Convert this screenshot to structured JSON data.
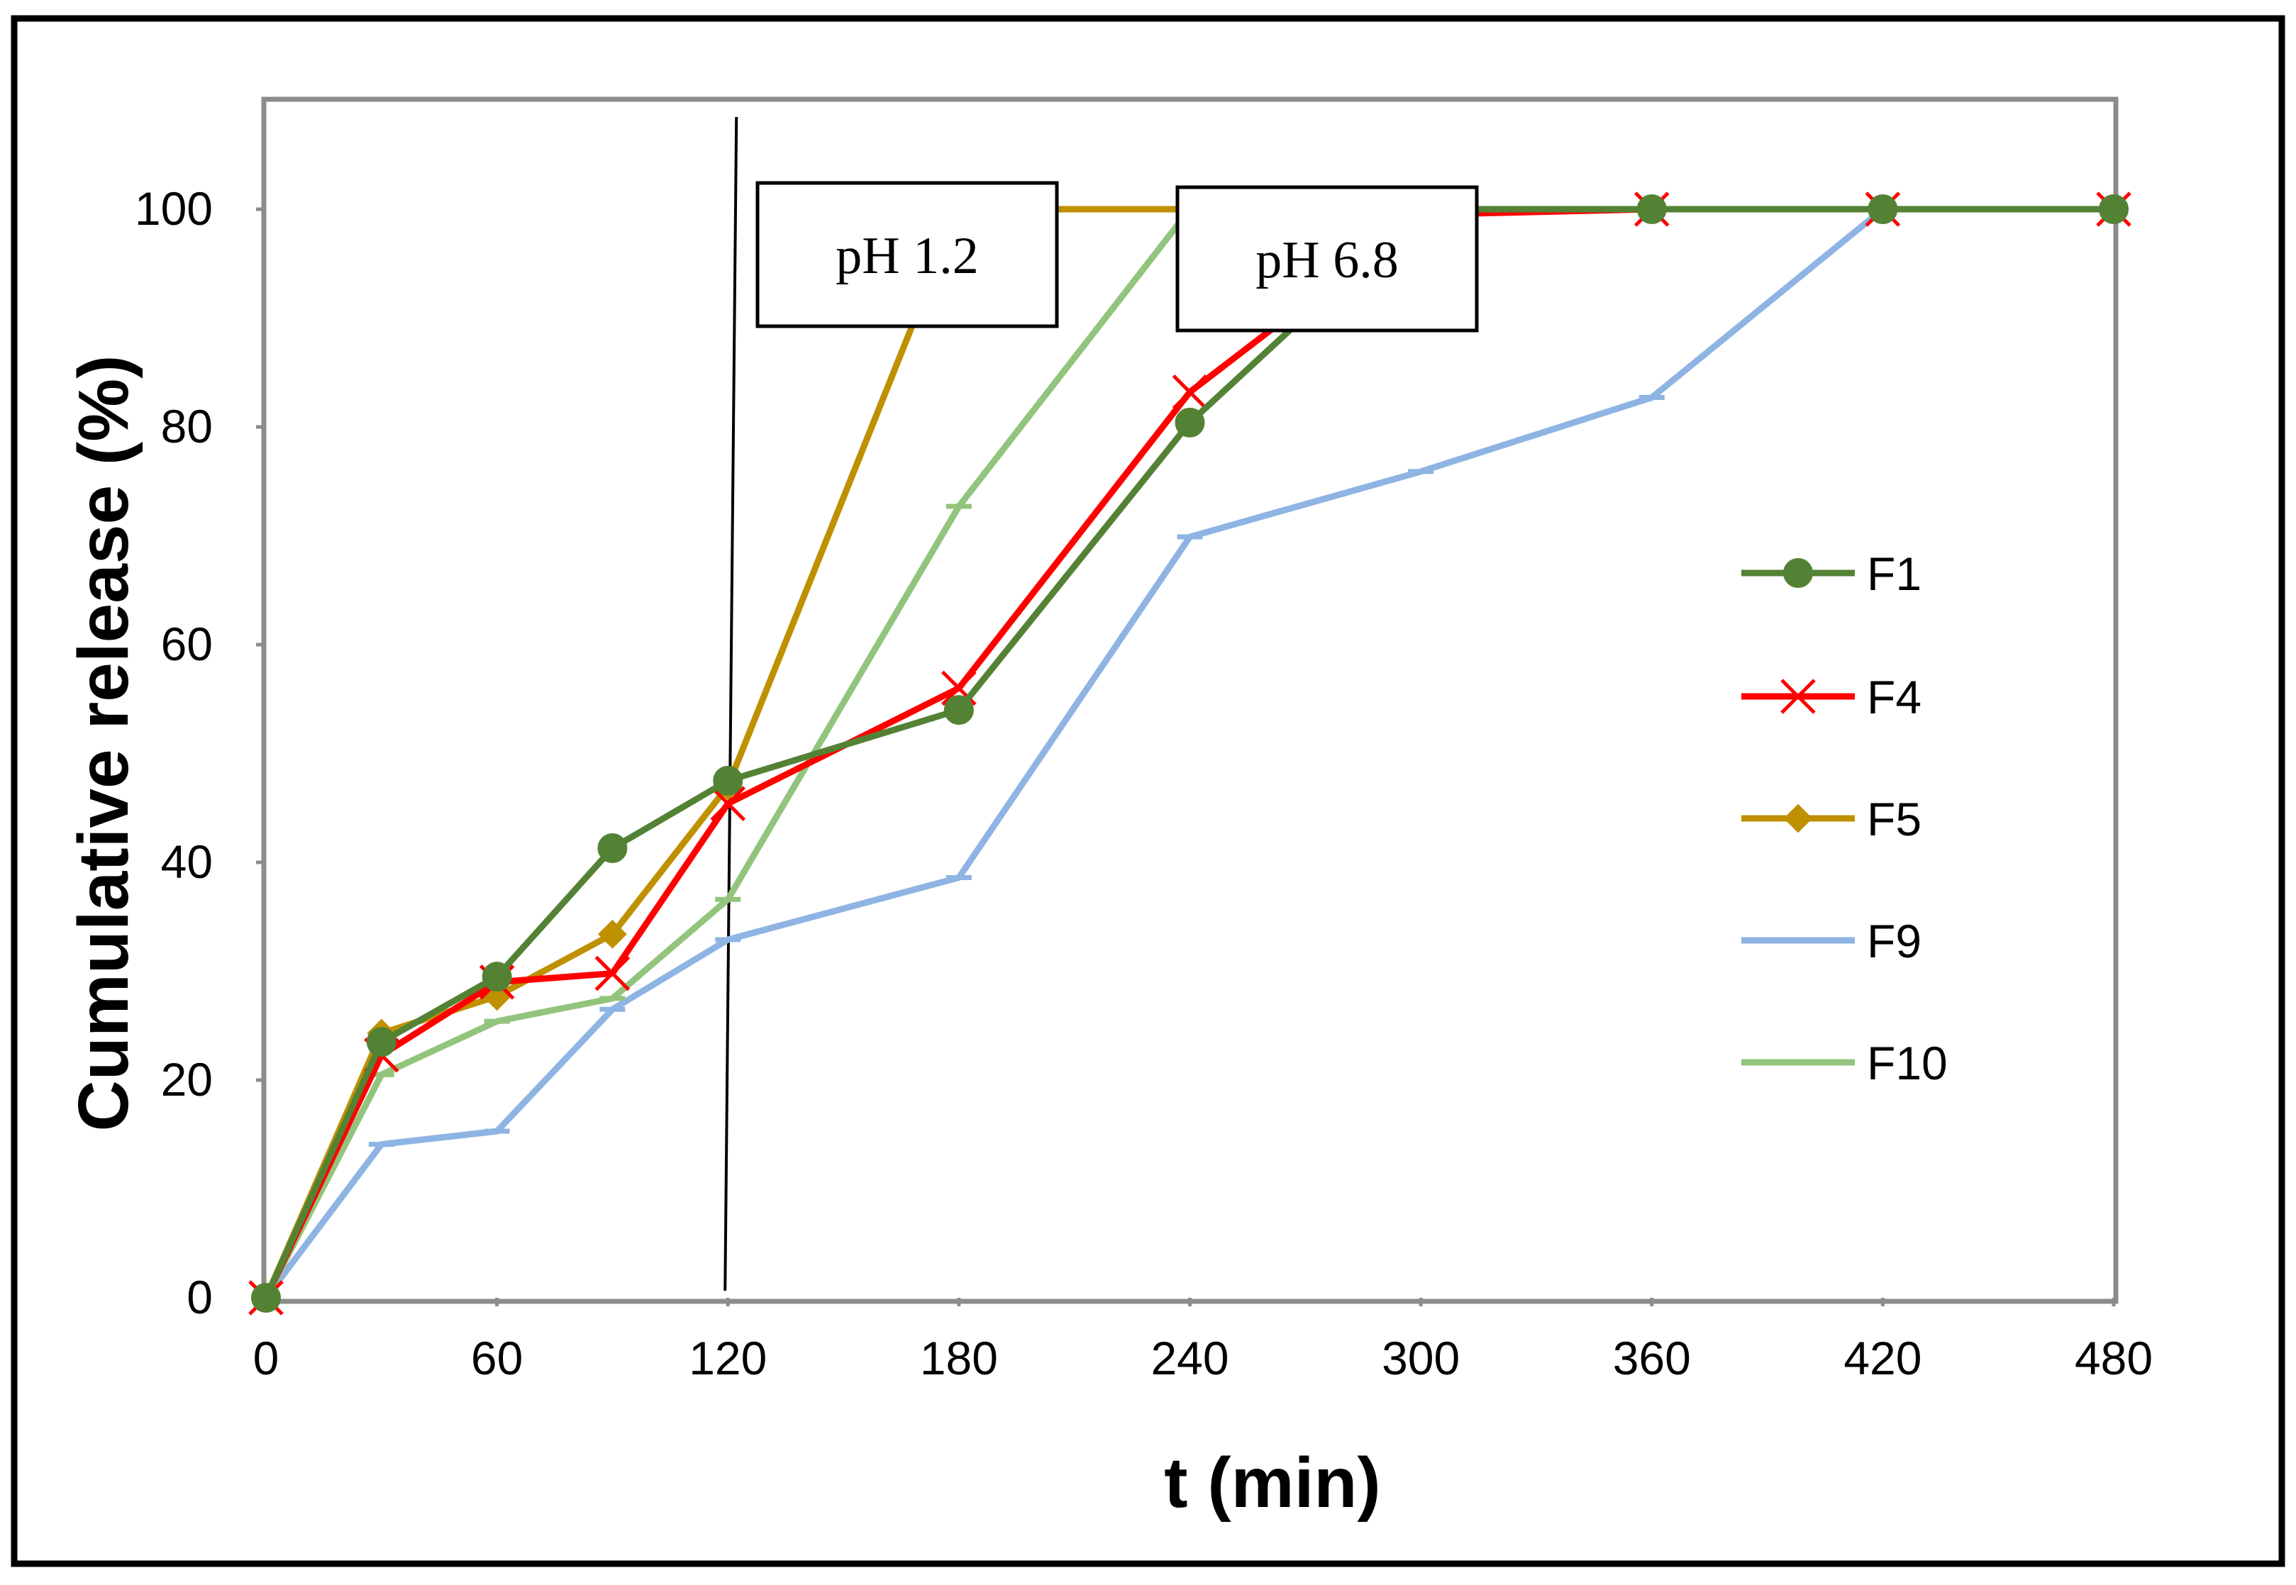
{
  "chart_data": {
    "type": "line",
    "title": "",
    "xlabel": "t (min)",
    "ylabel": "Cumulative release (%)",
    "xlim": [
      0,
      480
    ],
    "ylim": [
      0,
      110
    ],
    "xticks": [
      0,
      60,
      120,
      180,
      240,
      300,
      360,
      420,
      480
    ],
    "yticks": [
      0,
      20,
      40,
      60,
      80,
      100
    ],
    "grid": false,
    "legend_position": "right",
    "phase_divider_x": 120,
    "annotations": [
      {
        "text": "pH 1.2"
      },
      {
        "text": "pH 6.8"
      }
    ],
    "series": [
      {
        "name": "F1",
        "color": "#548235",
        "marker": "circle",
        "x": [
          0,
          30,
          60,
          90,
          120,
          180,
          240,
          300,
          360,
          420,
          480
        ],
        "values": [
          0,
          23.5,
          29.5,
          41.3,
          47.5,
          54,
          80.4,
          100,
          100,
          100,
          100
        ]
      },
      {
        "name": "F4",
        "color": "#ff0000",
        "marker": "x",
        "x": [
          0,
          30,
          60,
          90,
          120,
          180,
          240,
          300,
          360,
          420,
          480
        ],
        "values": [
          0,
          22.3,
          29,
          29.8,
          45.4,
          56,
          83.2,
          99.5,
          100,
          100,
          100
        ]
      },
      {
        "name": "F5",
        "color": "#bf9000",
        "marker": "diamond",
        "x": [
          0,
          30,
          60,
          90,
          120,
          180,
          240,
          300,
          360,
          420,
          480
        ],
        "values": [
          0,
          24.3,
          27.7,
          33.4,
          47,
          100,
          100,
          100,
          100,
          100,
          100
        ]
      },
      {
        "name": "F9",
        "color": "#8eb4e3",
        "marker": "dash",
        "x": [
          0,
          30,
          60,
          90,
          120,
          180,
          240,
          300,
          360,
          420,
          480
        ],
        "values": [
          0,
          14.1,
          15.3,
          26.5,
          32.9,
          38.6,
          69.9,
          75.9,
          82.7,
          100,
          100
        ]
      },
      {
        "name": "F10",
        "color": "#93c47d",
        "marker": "dash",
        "x": [
          0,
          30,
          60,
          90,
          120,
          180,
          240,
          300,
          360,
          420,
          480
        ],
        "values": [
          0,
          20.5,
          25.4,
          27.5,
          36.6,
          72.7,
          100,
          100,
          100,
          100,
          100
        ]
      }
    ]
  }
}
